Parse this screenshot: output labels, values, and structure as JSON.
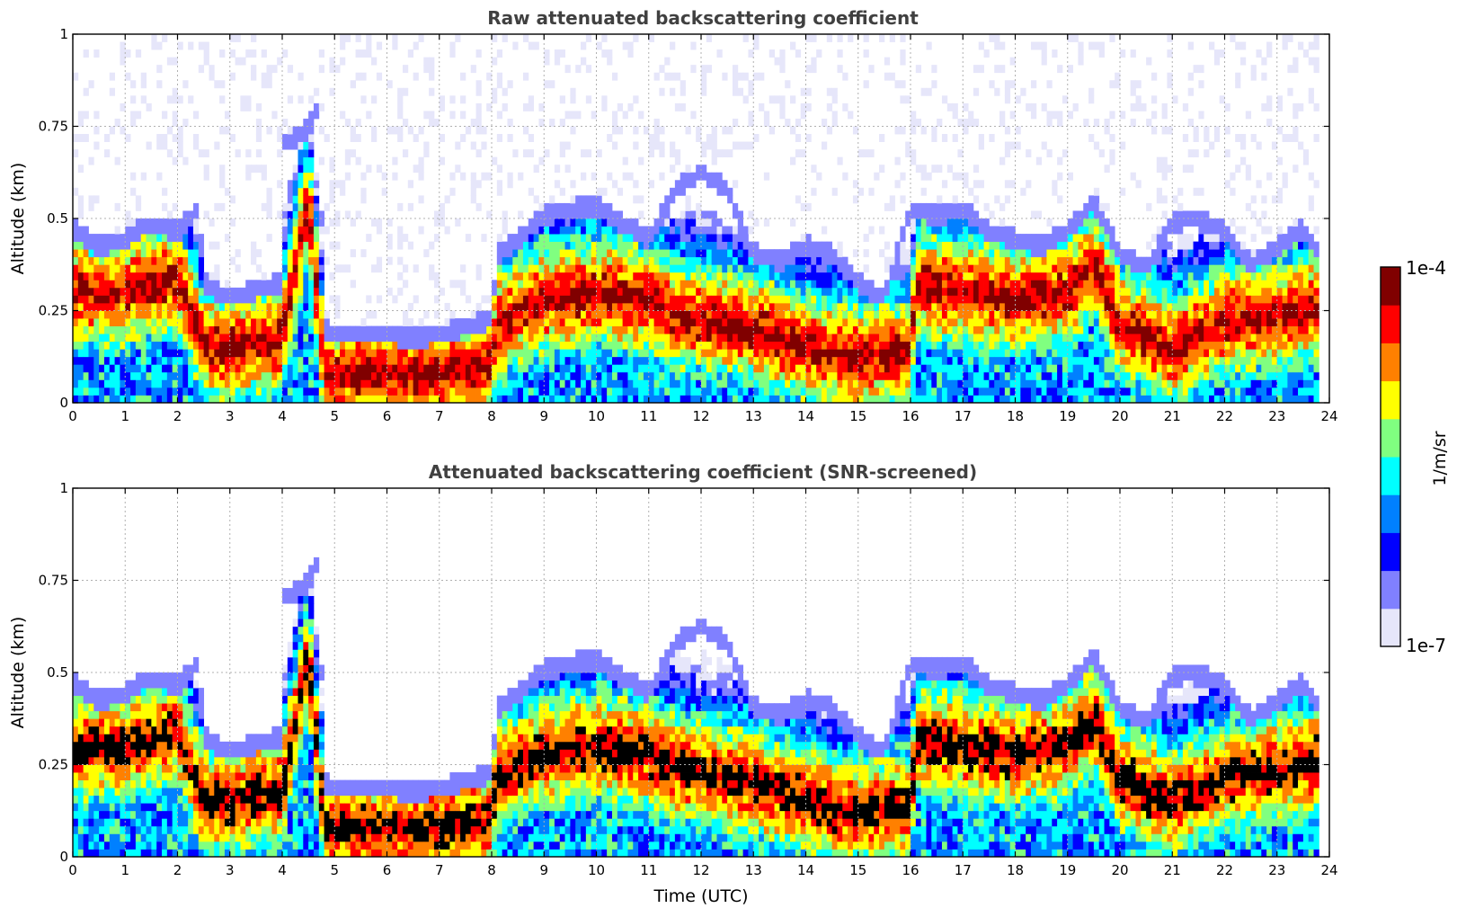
{
  "figure": {
    "colorbar": {
      "label": "1/m/sr",
      "tick_labels": [
        "1e-4",
        "1e-7"
      ],
      "scale": "log",
      "range": [
        1e-07,
        0.0001
      ],
      "colormap": [
        "#e6e6fa",
        "#8080ff",
        "#0000ff",
        "#0080ff",
        "#00ffff",
        "#80ff80",
        "#ffff00",
        "#ff8000",
        "#ff0000",
        "#800000"
      ]
    },
    "x_label": "Time (UTC)",
    "x_tick_labels": [
      "0",
      "1",
      "2",
      "3",
      "4",
      "5",
      "6",
      "7",
      "8",
      "9",
      "10",
      "11",
      "12",
      "13",
      "14",
      "15",
      "16",
      "17",
      "18",
      "19",
      "20",
      "21",
      "22",
      "23",
      "24"
    ],
    "y_label": "Altitude (km)",
    "y_tick_labels": [
      "0",
      "0.25",
      "0.5",
      "0.75",
      "1"
    ]
  },
  "chart_data": [
    {
      "type": "heatmap",
      "title": "Raw attenuated backscattering coefficient",
      "xlabel": "",
      "ylabel": "Altitude (km)",
      "xlim": [
        0,
        24
      ],
      "ylim": [
        0,
        1
      ],
      "grid": true,
      "screened": false,
      "layer_top_km": [
        [
          0,
          0.45
        ],
        [
          0.5,
          0.4
        ],
        [
          1,
          0.42
        ],
        [
          1.5,
          0.46
        ],
        [
          2,
          0.44
        ],
        [
          2.4,
          0.5
        ],
        [
          2.5,
          0.3
        ],
        [
          3,
          0.26
        ],
        [
          3.5,
          0.28
        ],
        [
          4,
          0.3
        ],
        [
          4.05,
          0.68
        ],
        [
          4.5,
          0.72
        ],
        [
          4.7,
          0.78
        ],
        [
          4.8,
          0.17
        ],
        [
          5.5,
          0.16
        ],
        [
          6,
          0.16
        ],
        [
          6.5,
          0.15
        ],
        [
          7,
          0.16
        ],
        [
          7.5,
          0.18
        ],
        [
          8,
          0.2
        ],
        [
          8.1,
          0.38
        ],
        [
          8.5,
          0.42
        ],
        [
          9,
          0.48
        ],
        [
          9.5,
          0.5
        ],
        [
          10,
          0.51
        ],
        [
          10.5,
          0.46
        ],
        [
          11,
          0.42
        ],
        [
          11.5,
          0.55
        ],
        [
          12,
          0.6
        ],
        [
          12.5,
          0.55
        ],
        [
          13,
          0.38
        ],
        [
          13.5,
          0.36
        ],
        [
          14,
          0.4
        ],
        [
          14.5,
          0.38
        ],
        [
          15,
          0.3
        ],
        [
          15.5,
          0.26
        ],
        [
          16,
          0.5
        ],
        [
          16.5,
          0.48
        ],
        [
          17,
          0.5
        ],
        [
          17.5,
          0.44
        ],
        [
          18,
          0.42
        ],
        [
          18.5,
          0.4
        ],
        [
          19,
          0.44
        ],
        [
          19.5,
          0.52
        ],
        [
          20,
          0.38
        ],
        [
          20.5,
          0.34
        ],
        [
          21,
          0.46
        ],
        [
          21.5,
          0.48
        ],
        [
          22,
          0.44
        ],
        [
          22.5,
          0.35
        ],
        [
          23,
          0.4
        ],
        [
          23.5,
          0.45
        ],
        [
          23.8,
          0.38
        ]
      ],
      "layer_core_km": [
        [
          0,
          0.3
        ],
        [
          1,
          0.3
        ],
        [
          2,
          0.34
        ],
        [
          2.5,
          0.15
        ],
        [
          3,
          0.15
        ],
        [
          4,
          0.18
        ],
        [
          4.5,
          0.55
        ],
        [
          4.8,
          0.08
        ],
        [
          6,
          0.08
        ],
        [
          7,
          0.08
        ],
        [
          8,
          0.1
        ],
        [
          8.1,
          0.22
        ],
        [
          9,
          0.28
        ],
        [
          10,
          0.3
        ],
        [
          11,
          0.28
        ],
        [
          11.5,
          0.24
        ],
        [
          13,
          0.2
        ],
        [
          14,
          0.15
        ],
        [
          15,
          0.12
        ],
        [
          16,
          0.14
        ],
        [
          16.1,
          0.32
        ],
        [
          17,
          0.3
        ],
        [
          18,
          0.28
        ],
        [
          19,
          0.3
        ],
        [
          19.5,
          0.38
        ],
        [
          20,
          0.22
        ],
        [
          21,
          0.14
        ],
        [
          22,
          0.22
        ],
        [
          23,
          0.24
        ],
        [
          23.8,
          0.26
        ]
      ]
    },
    {
      "type": "heatmap",
      "title": "Attenuated backscattering coefficient (SNR-screened)",
      "xlabel": "Time (UTC)",
      "ylabel": "Altitude (km)",
      "xlim": [
        0,
        24
      ],
      "ylim": [
        0,
        1
      ],
      "grid": true,
      "screened": true,
      "saturated_color": "#000000",
      "layer_top_km": [
        [
          0,
          0.45
        ],
        [
          0.5,
          0.4
        ],
        [
          1,
          0.42
        ],
        [
          1.5,
          0.46
        ],
        [
          2,
          0.44
        ],
        [
          2.4,
          0.5
        ],
        [
          2.5,
          0.3
        ],
        [
          3,
          0.26
        ],
        [
          3.5,
          0.28
        ],
        [
          4,
          0.3
        ],
        [
          4.05,
          0.68
        ],
        [
          4.5,
          0.72
        ],
        [
          4.7,
          0.78
        ],
        [
          4.8,
          0.17
        ],
        [
          5.5,
          0.16
        ],
        [
          6,
          0.16
        ],
        [
          6.5,
          0.15
        ],
        [
          7,
          0.16
        ],
        [
          7.5,
          0.18
        ],
        [
          8,
          0.2
        ],
        [
          8.1,
          0.38
        ],
        [
          8.5,
          0.42
        ],
        [
          9,
          0.48
        ],
        [
          9.5,
          0.5
        ],
        [
          10,
          0.51
        ],
        [
          10.5,
          0.46
        ],
        [
          11,
          0.42
        ],
        [
          11.5,
          0.55
        ],
        [
          12,
          0.6
        ],
        [
          12.5,
          0.55
        ],
        [
          13,
          0.38
        ],
        [
          13.5,
          0.36
        ],
        [
          14,
          0.4
        ],
        [
          14.5,
          0.38
        ],
        [
          15,
          0.3
        ],
        [
          15.5,
          0.26
        ],
        [
          16,
          0.5
        ],
        [
          16.5,
          0.48
        ],
        [
          17,
          0.5
        ],
        [
          17.5,
          0.44
        ],
        [
          18,
          0.42
        ],
        [
          18.5,
          0.4
        ],
        [
          19,
          0.44
        ],
        [
          19.5,
          0.52
        ],
        [
          20,
          0.38
        ],
        [
          20.5,
          0.34
        ],
        [
          21,
          0.46
        ],
        [
          21.5,
          0.48
        ],
        [
          22,
          0.44
        ],
        [
          22.5,
          0.35
        ],
        [
          23,
          0.4
        ],
        [
          23.5,
          0.45
        ],
        [
          23.8,
          0.38
        ]
      ],
      "layer_core_km": [
        [
          0,
          0.3
        ],
        [
          1,
          0.3
        ],
        [
          2,
          0.34
        ],
        [
          2.5,
          0.15
        ],
        [
          3,
          0.15
        ],
        [
          4,
          0.18
        ],
        [
          4.5,
          0.55
        ],
        [
          4.8,
          0.08
        ],
        [
          6,
          0.08
        ],
        [
          7,
          0.08
        ],
        [
          8,
          0.1
        ],
        [
          8.1,
          0.22
        ],
        [
          9,
          0.28
        ],
        [
          10,
          0.3
        ],
        [
          11,
          0.28
        ],
        [
          11.5,
          0.24
        ],
        [
          13,
          0.2
        ],
        [
          14,
          0.15
        ],
        [
          15,
          0.12
        ],
        [
          16,
          0.14
        ],
        [
          16.1,
          0.32
        ],
        [
          17,
          0.3
        ],
        [
          18,
          0.28
        ],
        [
          19,
          0.3
        ],
        [
          19.5,
          0.38
        ],
        [
          20,
          0.22
        ],
        [
          21,
          0.14
        ],
        [
          22,
          0.22
        ],
        [
          23,
          0.24
        ],
        [
          23.8,
          0.26
        ]
      ]
    }
  ]
}
